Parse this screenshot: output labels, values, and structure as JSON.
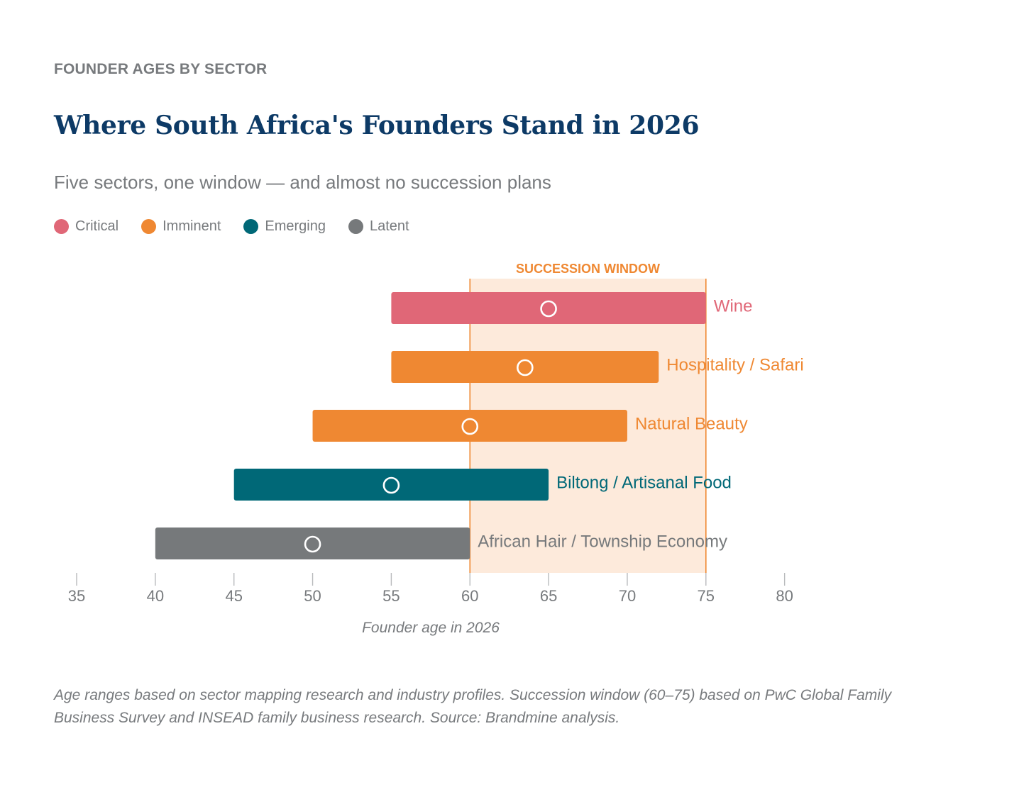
{
  "header": {
    "eyebrow": "FOUNDER AGES BY SECTOR",
    "title": "Where South Africa's Founders Stand in 2026",
    "subtitle": "Five sectors, one window — and almost no succession plans"
  },
  "legend": [
    {
      "label": "Critical",
      "color": "#e06777"
    },
    {
      "label": "Imminent",
      "color": "#ef8832"
    },
    {
      "label": "Emerging",
      "color": "#006877"
    },
    {
      "label": "Latent",
      "color": "#76797b"
    }
  ],
  "chart_data": {
    "type": "range-bar",
    "title": "",
    "xlabel": "Founder age in 2026",
    "ylabel": "",
    "xlim": [
      35,
      80
    ],
    "xticks": [
      35,
      40,
      45,
      50,
      55,
      60,
      65,
      70,
      75,
      80
    ],
    "grid": false,
    "highlight": {
      "label": "SUCCESSION WINDOW",
      "start": 60,
      "end": 75,
      "fill": "#fdeadb",
      "stroke": "#ef8832"
    },
    "series": [
      {
        "name": "Wine",
        "min": 55,
        "max": 75,
        "marker": 65,
        "status": "Critical",
        "color": "#e06777"
      },
      {
        "name": "Hospitality / Safari",
        "min": 55,
        "max": 72,
        "marker": 63.5,
        "status": "Imminent",
        "color": "#ef8832"
      },
      {
        "name": "Natural Beauty",
        "min": 50,
        "max": 70,
        "marker": 60,
        "status": "Imminent",
        "color": "#ef8832"
      },
      {
        "name": "Biltong / Artisanal Food",
        "min": 45,
        "max": 65,
        "marker": 55,
        "status": "Emerging",
        "color": "#006877"
      },
      {
        "name": "African Hair / Township Economy",
        "min": 40,
        "max": 60,
        "marker": 50,
        "status": "Latent",
        "color": "#76797b"
      }
    ]
  },
  "footnote": "Age ranges based on sector mapping research and industry profiles. Succession window (60–75) based on PwC Global Family Business Survey and INSEAD family business research. Source: Brandmine analysis."
}
